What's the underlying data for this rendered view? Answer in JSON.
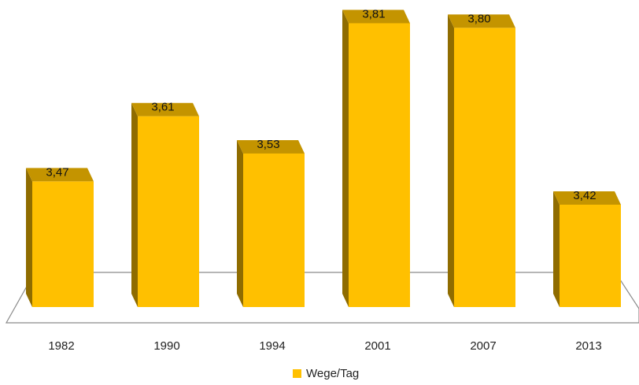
{
  "colors": {
    "bar_front": "#FFC000",
    "bar_top": "#C49400",
    "bar_side": "#8F6C00",
    "floor_line": "#8a8a8a",
    "label_text": "#111111"
  },
  "chart_data": {
    "type": "bar",
    "categories": [
      "1982",
      "1990",
      "1994",
      "2001",
      "2007",
      "2013"
    ],
    "series": [
      {
        "name": "Wege/Tag",
        "values": [
          3.47,
          3.61,
          3.53,
          3.81,
          3.8,
          3.42
        ],
        "labels": [
          "3,47",
          "3,61",
          "3,53",
          "3,81",
          "3,80",
          "3,42"
        ]
      }
    ],
    "title": "",
    "xlabel": "",
    "ylabel": "",
    "ylim": [
      3.2,
      3.85
    ],
    "legend_position": "bottom",
    "grid": false,
    "style": "3d-column"
  }
}
